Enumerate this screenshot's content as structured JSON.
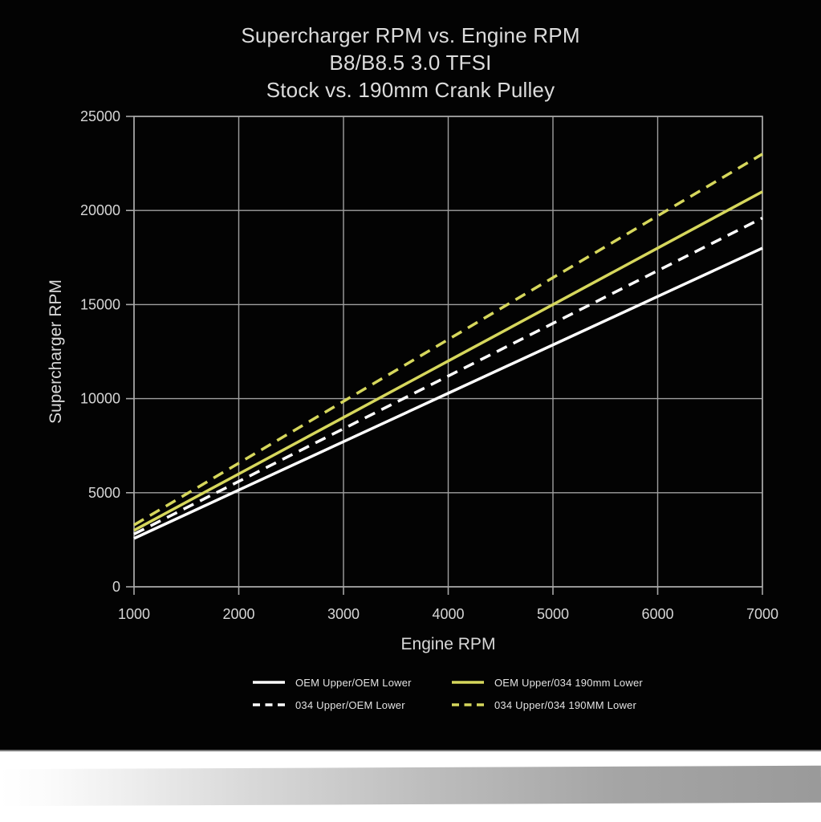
{
  "title": {
    "line1": "Supercharger RPM vs. Engine RPM",
    "line2": "B8/B8.5 3.0 TFSI",
    "line3": "Stock vs. 190mm Crank Pulley"
  },
  "colors": {
    "background": "#030303",
    "text": "#dcdcdc",
    "grid": "#a8a8a8",
    "series_white": "#ffffff",
    "series_yellow": "#d6d75c"
  },
  "chart_data": {
    "type": "line",
    "title_lines": [
      "Supercharger RPM vs. Engine RPM",
      "B8/B8.5 3.0 TFSI",
      "Stock vs. 190mm Crank Pulley"
    ],
    "xlabel": "Engine RPM",
    "ylabel": "Supercharger RPM",
    "xlim": [
      1000,
      7000
    ],
    "ylim": [
      0,
      25000
    ],
    "xticks": [
      1000,
      2000,
      3000,
      4000,
      5000,
      6000,
      7000
    ],
    "yticks": [
      0,
      5000,
      10000,
      15000,
      20000,
      25000
    ],
    "grid": true,
    "legend_position": "bottom",
    "x": [
      1000,
      2000,
      3000,
      4000,
      5000,
      6000,
      7000
    ],
    "series": [
      {
        "name": "OEM Upper/OEM Lower",
        "color": "#ffffff",
        "style": "solid",
        "values": [
          2571,
          5143,
          7714,
          10286,
          12857,
          15429,
          18000
        ]
      },
      {
        "name": "034 Upper/OEM Lower",
        "color": "#ffffff",
        "style": "dashed",
        "values": [
          2800,
          5600,
          8400,
          11200,
          14000,
          16800,
          19600
        ]
      },
      {
        "name": "OEM Upper/034 190mm Lower",
        "color": "#d6d75c",
        "style": "solid",
        "values": [
          3000,
          6000,
          9000,
          12000,
          15000,
          18000,
          21000
        ]
      },
      {
        "name": "034 Upper/034 190MM Lower",
        "color": "#d6d75c",
        "style": "dashed",
        "values": [
          3286,
          6571,
          9857,
          13143,
          16429,
          19714,
          23000
        ]
      }
    ]
  }
}
